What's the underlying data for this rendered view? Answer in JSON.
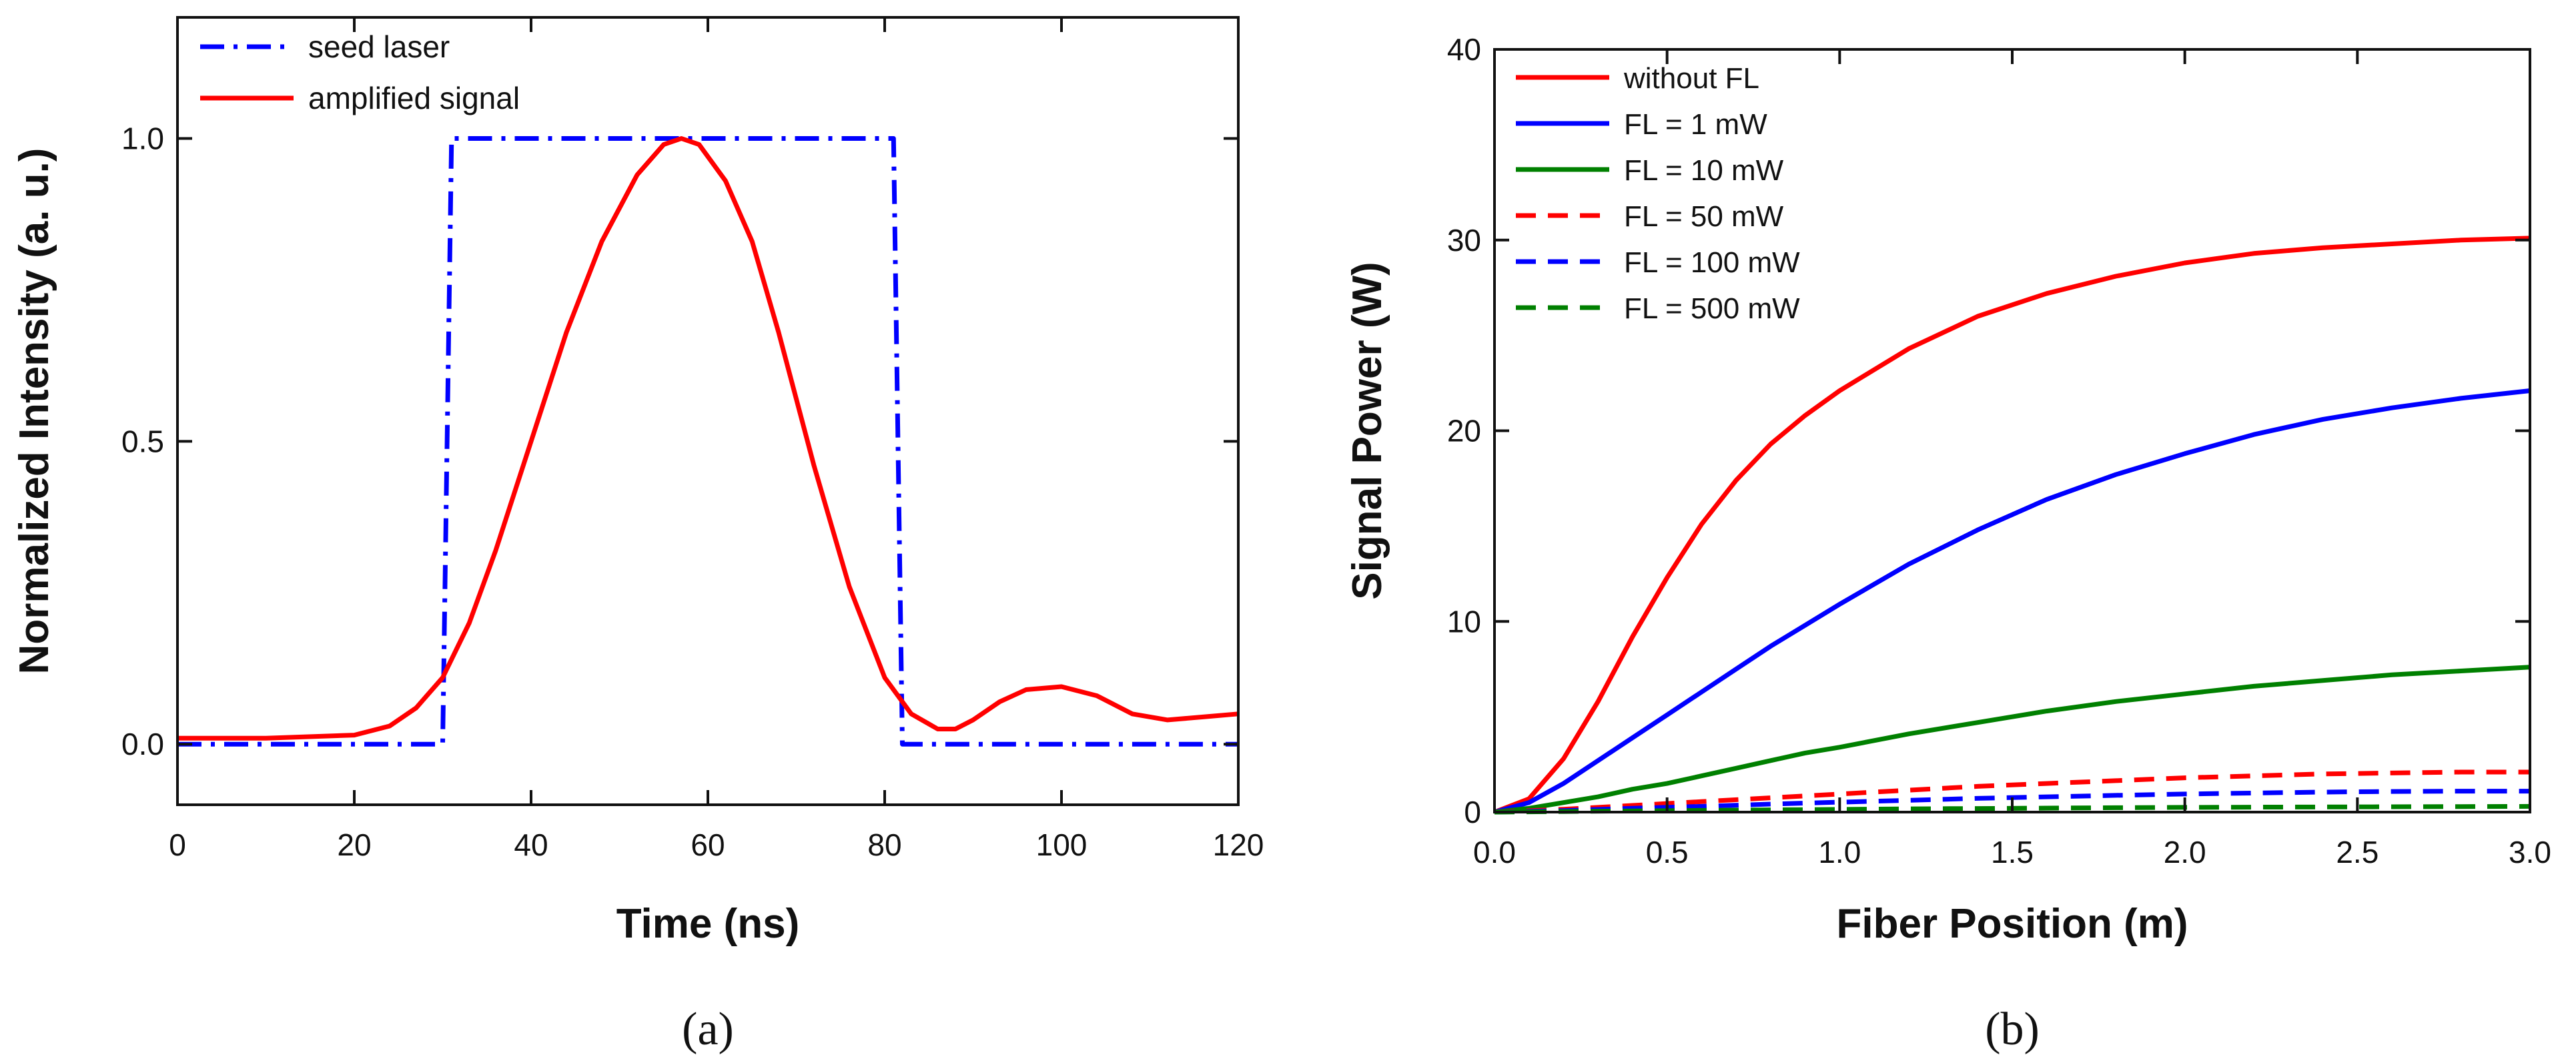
{
  "chart_data": [
    {
      "type": "line",
      "panel_label": "(a)",
      "title": "",
      "xlabel": "Time (ns)",
      "ylabel": "Normalized Intensity (a. u.)",
      "xlim": [
        0,
        120
      ],
      "ylim": [
        -0.1,
        1.2
      ],
      "xticks": [
        0,
        20,
        40,
        60,
        80,
        100,
        120
      ],
      "yticks": [
        0.0,
        0.5,
        1.0
      ],
      "xtick_labels": [
        "0",
        "20",
        "40",
        "60",
        "80",
        "100",
        "120"
      ],
      "ytick_labels": [
        "0.0",
        "0.5",
        "1.0"
      ],
      "grid": false,
      "legend_position": "top-left",
      "series": [
        {
          "name": "seed laser",
          "color": "#0000ff",
          "style": "dashdot",
          "x": [
            0,
            30,
            31,
            81,
            82,
            120
          ],
          "y": [
            0,
            0,
            1,
            1,
            0,
            0
          ]
        },
        {
          "name": "amplified signal",
          "color": "#ff0000",
          "style": "solid",
          "x": [
            0,
            10,
            20,
            24,
            27,
            30,
            33,
            36,
            40,
            44,
            48,
            52,
            55,
            57,
            59,
            62,
            65,
            68,
            72,
            76,
            80,
            83,
            86,
            88,
            90,
            93,
            96,
            100,
            104,
            108,
            112,
            116,
            120
          ],
          "y": [
            0.01,
            0.01,
            0.015,
            0.03,
            0.06,
            0.11,
            0.2,
            0.32,
            0.5,
            0.68,
            0.83,
            0.94,
            0.99,
            1.0,
            0.99,
            0.93,
            0.83,
            0.68,
            0.46,
            0.26,
            0.11,
            0.05,
            0.025,
            0.025,
            0.04,
            0.07,
            0.09,
            0.095,
            0.08,
            0.05,
            0.04,
            0.045,
            0.05
          ]
        }
      ]
    },
    {
      "type": "line",
      "panel_label": "(b)",
      "title": "",
      "xlabel": "Fiber Position (m)",
      "ylabel": "Signal Power (W)",
      "xlim": [
        0,
        3
      ],
      "ylim": [
        0,
        40
      ],
      "xticks": [
        0,
        0.5,
        1.0,
        1.5,
        2.0,
        2.5,
        3.0
      ],
      "yticks": [
        0,
        10,
        20,
        30,
        40
      ],
      "xtick_labels": [
        "0.0",
        "0.5",
        "1.0",
        "1.5",
        "2.0",
        "2.5",
        "3.0"
      ],
      "ytick_labels": [
        "0",
        "10",
        "20",
        "30",
        "40"
      ],
      "grid": false,
      "legend_position": "top-left",
      "series": [
        {
          "name": "without FL",
          "color": "#ff0000",
          "style": "solid",
          "x": [
            0,
            0.1,
            0.2,
            0.3,
            0.4,
            0.5,
            0.6,
            0.7,
            0.8,
            0.9,
            1.0,
            1.2,
            1.4,
            1.6,
            1.8,
            2.0,
            2.2,
            2.4,
            2.6,
            2.8,
            3.0
          ],
          "y": [
            0,
            0.7,
            2.8,
            5.8,
            9.2,
            12.3,
            15.1,
            17.4,
            19.3,
            20.8,
            22.1,
            24.3,
            26.0,
            27.2,
            28.1,
            28.8,
            29.3,
            29.6,
            29.8,
            30.0,
            30.1
          ]
        },
        {
          "name": "FL = 1 mW",
          "color": "#0000ff",
          "style": "solid",
          "x": [
            0,
            0.1,
            0.2,
            0.3,
            0.4,
            0.5,
            0.6,
            0.7,
            0.8,
            0.9,
            1.0,
            1.2,
            1.4,
            1.6,
            1.8,
            2.0,
            2.2,
            2.4,
            2.6,
            2.8,
            3.0
          ],
          "y": [
            0,
            0.5,
            1.5,
            2.7,
            3.9,
            5.1,
            6.3,
            7.5,
            8.7,
            9.8,
            10.9,
            13.0,
            14.8,
            16.4,
            17.7,
            18.8,
            19.8,
            20.6,
            21.2,
            21.7,
            22.1
          ]
        },
        {
          "name": "FL = 10 mW",
          "color": "#008000",
          "style": "solid",
          "x": [
            0,
            0.1,
            0.2,
            0.3,
            0.4,
            0.5,
            0.6,
            0.7,
            0.8,
            0.9,
            1.0,
            1.2,
            1.4,
            1.6,
            1.8,
            2.0,
            2.2,
            2.4,
            2.6,
            2.8,
            3.0
          ],
          "y": [
            0,
            0.2,
            0.5,
            0.8,
            1.2,
            1.5,
            1.9,
            2.3,
            2.7,
            3.1,
            3.4,
            4.1,
            4.7,
            5.3,
            5.8,
            6.2,
            6.6,
            6.9,
            7.2,
            7.4,
            7.6
          ]
        },
        {
          "name": "FL = 50 mW",
          "color": "#ff0000",
          "style": "dashed",
          "x": [
            0,
            0.2,
            0.4,
            0.6,
            0.8,
            1.0,
            1.2,
            1.4,
            1.6,
            1.8,
            2.0,
            2.2,
            2.4,
            2.6,
            2.8,
            3.0
          ],
          "y": [
            0,
            0.15,
            0.35,
            0.55,
            0.75,
            0.95,
            1.15,
            1.35,
            1.5,
            1.65,
            1.8,
            1.9,
            2.0,
            2.05,
            2.1,
            2.1
          ]
        },
        {
          "name": "FL = 100 mW",
          "color": "#0000ff",
          "style": "dashed",
          "x": [
            0,
            0.2,
            0.4,
            0.6,
            0.8,
            1.0,
            1.2,
            1.4,
            1.6,
            1.8,
            2.0,
            2.2,
            2.4,
            2.6,
            2.8,
            3.0
          ],
          "y": [
            0,
            0.08,
            0.2,
            0.3,
            0.42,
            0.52,
            0.62,
            0.72,
            0.8,
            0.88,
            0.95,
            1.0,
            1.05,
            1.08,
            1.1,
            1.1
          ]
        },
        {
          "name": "FL = 500 mW",
          "color": "#008000",
          "style": "dashed",
          "x": [
            0,
            0.2,
            0.4,
            0.6,
            0.8,
            1.0,
            1.2,
            1.4,
            1.6,
            1.8,
            2.0,
            2.2,
            2.4,
            2.6,
            2.8,
            3.0
          ],
          "y": [
            0,
            0.03,
            0.06,
            0.09,
            0.12,
            0.14,
            0.17,
            0.19,
            0.21,
            0.23,
            0.25,
            0.26,
            0.27,
            0.28,
            0.29,
            0.3
          ]
        }
      ]
    }
  ]
}
